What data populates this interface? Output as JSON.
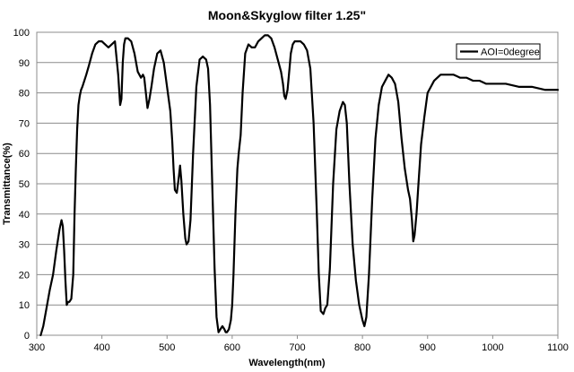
{
  "chart_data": {
    "type": "line",
    "title": "Moon&Skyglow filter 1.25\"",
    "xlabel": "Wavelength(nm)",
    "ylabel": "Transmittance(%)",
    "xlim": [
      300,
      1100
    ],
    "ylim": [
      0,
      100
    ],
    "xticks": [
      "300",
      "400",
      "500",
      "600",
      "700",
      "800",
      "900",
      "1000",
      "1100"
    ],
    "yticks": [
      "0",
      "10",
      "20",
      "30",
      "40",
      "50",
      "60",
      "70",
      "80",
      "90",
      "100"
    ],
    "grid": "horizontal",
    "legend_position": "top-right",
    "series_color": "#000000",
    "series": [
      {
        "name": "AOI=0degree",
        "x": [
          306,
          310,
          315,
          320,
          325,
          330,
          335,
          338,
          340,
          342,
          344,
          346,
          348,
          350,
          353,
          356,
          358,
          360,
          362,
          364,
          366,
          368,
          370,
          373,
          376,
          380,
          385,
          390,
          395,
          400,
          405,
          410,
          415,
          420,
          425,
          428,
          430,
          432,
          434,
          436,
          438,
          440,
          445,
          450,
          455,
          460,
          463,
          465,
          468,
          470,
          473,
          476,
          480,
          485,
          490,
          495,
          500,
          505,
          508,
          510,
          512,
          515,
          518,
          520,
          522,
          525,
          528,
          530,
          533,
          536,
          540,
          545,
          550,
          555,
          560,
          563,
          566,
          570,
          573,
          576,
          579,
          582,
          585,
          588,
          590,
          592,
          595,
          598,
          600,
          602,
          605,
          608,
          610,
          613,
          616,
          620,
          625,
          630,
          635,
          640,
          645,
          650,
          655,
          660,
          665,
          670,
          675,
          678,
          680,
          682,
          685,
          688,
          690,
          693,
          696,
          700,
          705,
          710,
          715,
          720,
          725,
          730,
          733,
          736,
          740,
          743,
          746,
          750,
          755,
          760,
          765,
          770,
          773,
          776,
          780,
          785,
          790,
          795,
          800,
          803,
          806,
          810,
          815,
          820,
          825,
          830,
          835,
          840,
          845,
          850,
          855,
          860,
          865,
          870,
          873,
          876,
          878,
          880,
          883,
          886,
          890,
          895,
          900,
          905,
          910,
          915,
          920,
          925,
          930,
          935,
          940,
          950,
          960,
          970,
          980,
          990,
          1000,
          1020,
          1040,
          1060,
          1080,
          1100
        ],
        "y": [
          0,
          3,
          9,
          15,
          20,
          28,
          35,
          38,
          36,
          28,
          18,
          10,
          11,
          11,
          12,
          20,
          40,
          55,
          68,
          76,
          79,
          81,
          82,
          84,
          86,
          89,
          93,
          96,
          97,
          97,
          96,
          95,
          96,
          97,
          86,
          76,
          78,
          90,
          96,
          98,
          98,
          98,
          97,
          93,
          87,
          85,
          86,
          85,
          79,
          75,
          78,
          82,
          88,
          93,
          94,
          90,
          82,
          74,
          64,
          55,
          48,
          47,
          52,
          56,
          51,
          40,
          32,
          30,
          31,
          38,
          60,
          82,
          91,
          92,
          91,
          88,
          76,
          45,
          22,
          6,
          1,
          2,
          3,
          2,
          1,
          1,
          2,
          5,
          10,
          20,
          40,
          55,
          60,
          66,
          80,
          93,
          96,
          95,
          95,
          97,
          98,
          99,
          99,
          98,
          95,
          91,
          87,
          83,
          79,
          78,
          81,
          88,
          93,
          96,
          97,
          97,
          97,
          96,
          94,
          88,
          70,
          40,
          20,
          8,
          7,
          9,
          10,
          22,
          50,
          68,
          74,
          77,
          76,
          70,
          50,
          30,
          18,
          10,
          5,
          3,
          6,
          20,
          45,
          65,
          76,
          82,
          84,
          86,
          85,
          83,
          77,
          65,
          55,
          48,
          45,
          38,
          31,
          33,
          40,
          50,
          63,
          72,
          80,
          82,
          84,
          85,
          86,
          86,
          86,
          86,
          86,
          85,
          85,
          84,
          84,
          83,
          83,
          83,
          82,
          82,
          81,
          81
        ]
      }
    ]
  }
}
